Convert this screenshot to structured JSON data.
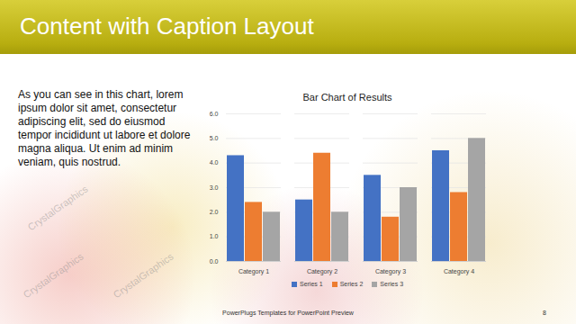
{
  "slide": {
    "title": "Content with Caption Layout",
    "caption": "As you can see in this chart, lorem ipsum dolor sit amet, consectetur adipiscing elit, sed do eiusmod tempor incididunt ut labore et dolore magna aliqua. Ut enim ad minim veniam, quis nostrud.",
    "footer": "PowerPlugs Templates for PowerPoint Preview",
    "page_number": "8",
    "watermark": "CrystalGraphics"
  },
  "chart_data": {
    "type": "bar",
    "title": "Bar Chart of Results",
    "categories": [
      "Category 1",
      "Category 2",
      "Category 3",
      "Category 4"
    ],
    "series": [
      {
        "name": "Series 1",
        "color": "#4472c4",
        "values": [
          4.3,
          2.5,
          3.5,
          4.5
        ]
      },
      {
        "name": "Series 2",
        "color": "#ed7d31",
        "values": [
          2.4,
          4.4,
          1.8,
          2.8
        ]
      },
      {
        "name": "Series 3",
        "color": "#a5a5a5",
        "values": [
          2.0,
          2.0,
          3.0,
          5.0
        ]
      }
    ],
    "ylim": [
      0,
      6
    ],
    "yticks": [
      0,
      1,
      2,
      3,
      4,
      5,
      6
    ],
    "grid": true,
    "legend": "bottom"
  }
}
